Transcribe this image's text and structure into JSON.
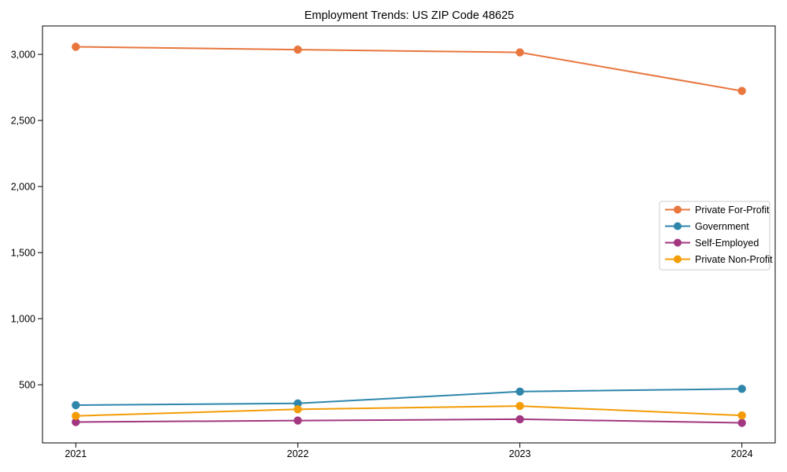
{
  "chart_data": {
    "type": "line",
    "title": "Employment Trends: US ZIP Code 48625",
    "x": [
      2021,
      2022,
      2023,
      2024
    ],
    "x_tick_labels": [
      "2021",
      "2022",
      "2023",
      "2024"
    ],
    "y_ticks": [
      500,
      1000,
      1500,
      2000,
      2500,
      3000
    ],
    "y_tick_labels": [
      "500",
      "1,000",
      "1,500",
      "2,000",
      "2,500",
      "3,000"
    ],
    "xlim": [
      2020.85,
      2024.15
    ],
    "ylim": [
      60,
      3215
    ],
    "grid": false,
    "legend_position": "center-right",
    "marker": "circle",
    "axis_color": "#000000",
    "background_color": "#ffffff",
    "legend_border_color": "#cccccc",
    "series": [
      {
        "name": "Private For-Profit",
        "color": "#e8763e",
        "values": [
          3057,
          3036,
          3015,
          2723
        ]
      },
      {
        "name": "Government",
        "color": "#2e86ab",
        "values": [
          346,
          359,
          448,
          469
        ]
      },
      {
        "name": "Self-Employed",
        "color": "#a23780",
        "values": [
          218,
          229,
          239,
          212
        ]
      },
      {
        "name": "Private Non-Profit",
        "color": "#f39c05",
        "values": [
          264,
          314,
          339,
          268
        ]
      }
    ]
  }
}
